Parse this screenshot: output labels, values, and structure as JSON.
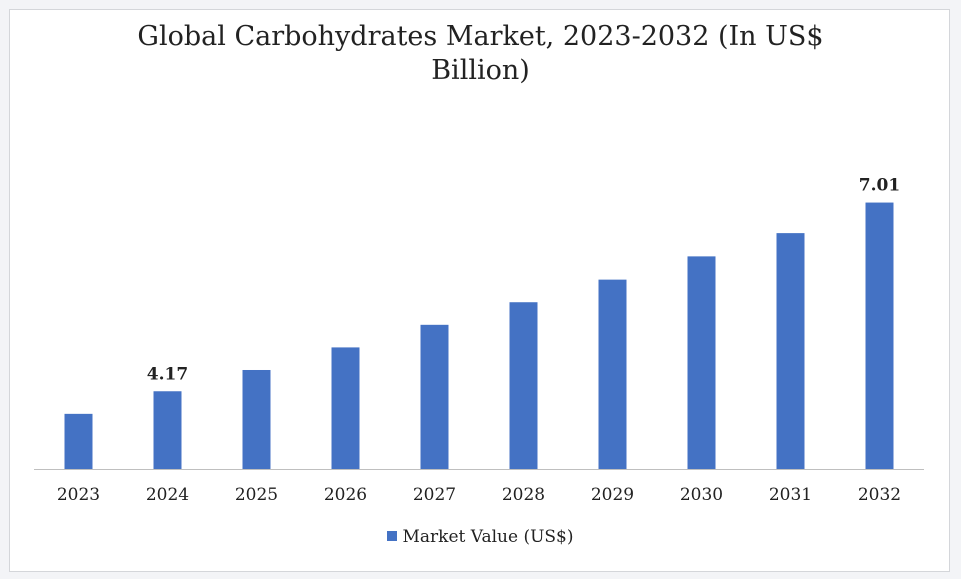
{
  "chart_data": {
    "type": "bar",
    "title_line1": "Global Carbohydrates Market, 2023-2032 (In US$",
    "title_line2": "Billion)",
    "categories": [
      "2023",
      "2024",
      "2025",
      "2026",
      "2027",
      "2028",
      "2029",
      "2030",
      "2031",
      "2032"
    ],
    "series": [
      {
        "name": "Market Value (US$)",
        "color": "#4472c4",
        "values": [
          3.83,
          4.17,
          4.49,
          4.83,
          5.17,
          5.51,
          5.85,
          6.2,
          6.55,
          7.01
        ],
        "data_labels": [
          "",
          "4.17",
          "",
          "",
          "",
          "",
          "",
          "",
          "",
          "7.01"
        ]
      }
    ],
    "ylim": [
      3.0,
      7.5
    ],
    "grid": false,
    "legend": "bottom"
  }
}
